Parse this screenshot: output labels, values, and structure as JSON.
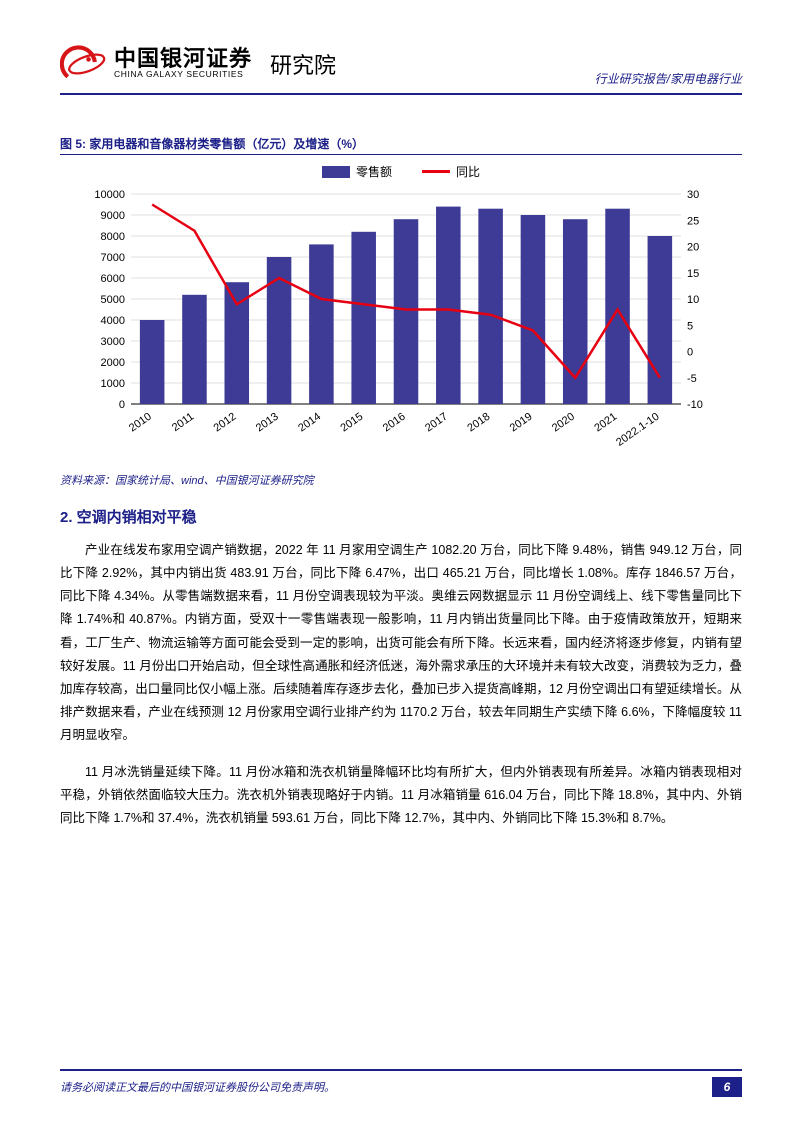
{
  "header": {
    "logo_cn": "中国银河证券",
    "logo_en": "CHINA GALAXY SECURITIES",
    "institute": "研究院",
    "doc_class": "行业研究报告/家用电器行业"
  },
  "figure": {
    "title": "图 5: 家用电器和音像器材类零售额（亿元）及增速（%）",
    "legend_bar": "零售额",
    "legend_line": "同比",
    "source": "资料来源：国家统计局、wind、中国银河证券研究院",
    "type": "bar+line",
    "categories": [
      "2010",
      "2011",
      "2012",
      "2013",
      "2014",
      "2015",
      "2016",
      "2017",
      "2018",
      "2019",
      "2020",
      "2021",
      "2022.1-10"
    ],
    "bar_values": [
      4000,
      5200,
      5800,
      7000,
      7600,
      8200,
      8800,
      9400,
      9300,
      9000,
      8800,
      9300,
      8000
    ],
    "line_values": [
      28,
      23,
      9,
      14,
      10,
      9,
      8,
      8,
      7,
      4,
      -5,
      8,
      -5
    ],
    "left_axis": {
      "min": 0,
      "max": 10000,
      "step": 1000
    },
    "right_axis": {
      "min": -10,
      "max": 30,
      "step": 5
    },
    "bar_color": "#3d3b95",
    "line_color": "#e60012",
    "axis_color": "#000000",
    "grid_color": "#bfbfbf",
    "axis_fontsize": 11,
    "bar_width": 0.58,
    "line_width": 2.5,
    "background_color": "#ffffff"
  },
  "section": {
    "heading": "2. 空调内销相对平稳",
    "para1": "产业在线发布家用空调产销数据，2022 年 11 月家用空调生产 1082.20 万台，同比下降 9.48%，销售 949.12 万台，同比下降 2.92%，其中内销出货 483.91 万台，同比下降 6.47%，出口 465.21 万台，同比增长 1.08%。库存 1846.57 万台，同比下降 4.34%。从零售端数据来看，11 月份空调表现较为平淡。奥维云网数据显示 11 月份空调线上、线下零售量同比下降 1.74%和 40.87%。内销方面，受双十一零售端表现一般影响，11 月内销出货量同比下降。由于疫情政策放开，短期来看，工厂生产、物流运输等方面可能会受到一定的影响，出货可能会有所下降。长远来看，国内经济将逐步修复，内销有望较好发展。11 月份出口开始启动，但全球性高通胀和经济低迷，海外需求承压的大环境并未有较大改变，消费较为乏力，叠加库存较高，出口量同比仅小幅上涨。后续随着库存逐步去化，叠加已步入提货高峰期，12 月份空调出口有望延续增长。从排产数据来看，产业在线预测 12 月份家用空调行业排产约为 1170.2 万台，较去年同期生产实绩下降 6.6%，下降幅度较 11 月明显收窄。",
    "para2": "11 月冰洗销量延续下降。11 月份冰箱和洗衣机销量降幅环比均有所扩大，但内外销表现有所差异。冰箱内销表现相对平稳，外销依然面临较大压力。洗衣机外销表现略好于内销。11 月冰箱销量 616.04 万台，同比下降 18.8%，其中内、外销同比下降 1.7%和 37.4%，洗衣机销量 593.61 万台，同比下降 12.7%，其中内、外销同比下降 15.3%和 8.7%。"
  },
  "footer": {
    "disclaimer": "请务必阅读正文最后的中国银河证券股份公司免责声明。",
    "page": "6"
  }
}
